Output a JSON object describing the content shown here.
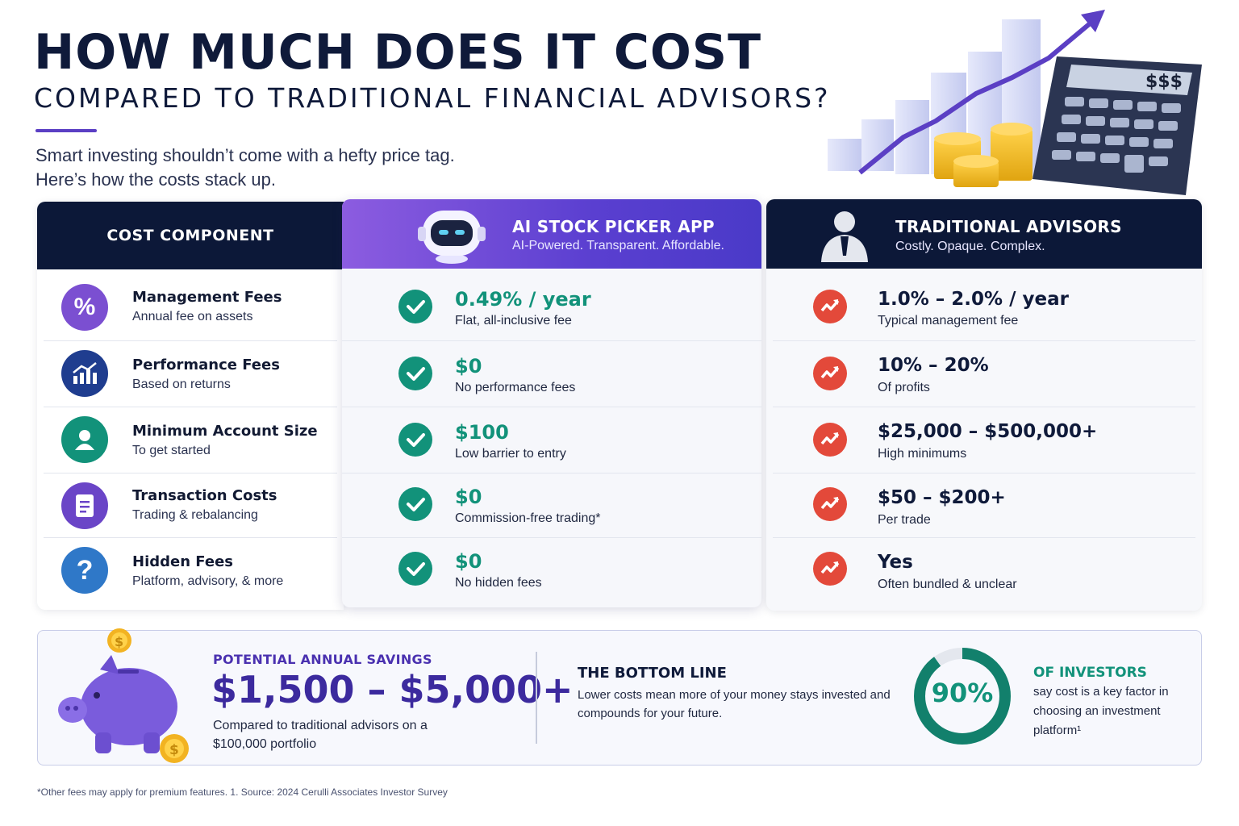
{
  "header": {
    "title": "HOW MUCH DOES IT COST",
    "subtitle": "COMPARED TO TRADITIONAL FINANCIAL ADVISORS?",
    "intro_line1": "Smart investing shouldn’t come with a hefty price tag.",
    "intro_line2": "Here’s how the costs stack up.",
    "calculator_display": "$$$"
  },
  "table": {
    "component_header": "COST COMPONENT",
    "ai_header": "AI STOCK PICKER APP",
    "ai_tagline": "AI-Powered. Transparent. Affordable.",
    "trad_header": "TRADITIONAL ADVISORS",
    "trad_tagline": "Costly. Opaque. Complex.",
    "rows": [
      {
        "icon": "percent-icon",
        "name": "Management Fees",
        "desc": "Annual fee on assets",
        "ai_value": "0.49% / year",
        "ai_desc": "Flat, all-inclusive fee",
        "trad_value": "1.0% – 2.0% / year",
        "trad_desc": "Typical management fee",
        "icon_symbol": "%"
      },
      {
        "icon": "chart-growth-icon",
        "name": "Performance Fees",
        "desc": "Based on returns",
        "ai_value": "$0",
        "ai_desc": "No performance fees",
        "trad_value": "10% – 20%",
        "trad_desc": "Of profits",
        "icon_symbol": ""
      },
      {
        "icon": "user-icon",
        "name": "Minimum Account Size",
        "desc": "To get started",
        "ai_value": "$100",
        "ai_desc": "Low barrier to entry",
        "trad_value": "$25,000 – $500,000+",
        "trad_desc": "High minimums",
        "icon_symbol": ""
      },
      {
        "icon": "document-icon",
        "name": "Transaction Costs",
        "desc": "Trading & rebalancing",
        "ai_value": "$0",
        "ai_desc": "Commission-free trading*",
        "trad_value": "$50 – $200+",
        "trad_desc": "Per trade",
        "icon_symbol": ""
      },
      {
        "icon": "question-icon",
        "name": "Hidden Fees",
        "desc": "Platform, advisory, & more",
        "ai_value": "$0",
        "ai_desc": "No hidden fees",
        "trad_value": "Yes",
        "trad_desc": "Often bundled & unclear",
        "icon_symbol": "?"
      }
    ]
  },
  "savings": {
    "label": "POTENTIAL ANNUAL SAVINGS",
    "amount": "$1,500 – $5,000+",
    "note": "Compared to traditional advisors on a $100,000 portfolio"
  },
  "bottom_line": {
    "title": "THE BOTTOM LINE",
    "text": "Lower costs mean more of your money stays invested and compounds for your future."
  },
  "stat": {
    "percent_label": "90%",
    "percent_value": 0.9,
    "title": "OF INVESTORS",
    "text": "say cost is a key factor in choosing an investment platform¹"
  },
  "footnote": "*Other fees may apply for premium features.  1. Source: 2024 Cerulli Associates Investor Survey",
  "colors": {
    "navy": "#0c1838",
    "purple": "#5a3fd0",
    "teal": "#12927a",
    "red": "#e3493a"
  }
}
